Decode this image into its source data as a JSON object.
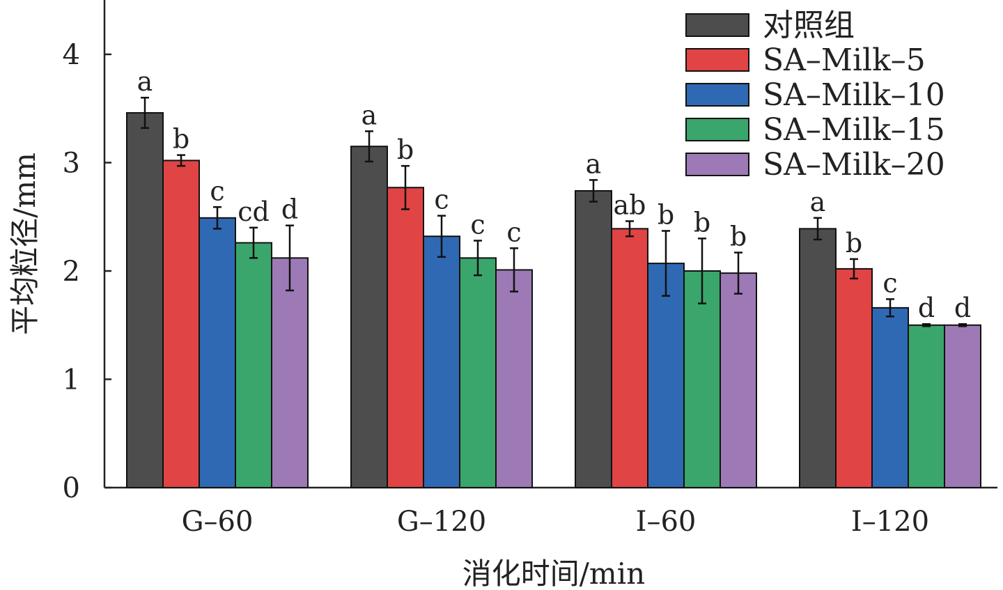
{
  "chart_data": {
    "type": "bar",
    "title": "",
    "xlabel": "消化时间/min",
    "ylabel": "平均粒径/mm",
    "ylim": [
      0,
      4.5
    ],
    "yticks": [
      0,
      1,
      2,
      3,
      4
    ],
    "categories": [
      "G-60",
      "G-120",
      "I-60",
      "I-120"
    ],
    "legend_position": "top-right",
    "grid": false,
    "series": [
      {
        "name": "对照组",
        "color": "#4d4d4d",
        "values": [
          3.46,
          3.15,
          2.74,
          2.39
        ],
        "errors": [
          0.14,
          0.14,
          0.1,
          0.1
        ],
        "labels": [
          "a",
          "a",
          "a",
          "a"
        ]
      },
      {
        "name": "SA-Milk-5",
        "color": "#e04444",
        "values": [
          3.02,
          2.77,
          2.39,
          2.02
        ],
        "errors": [
          0.05,
          0.2,
          0.07,
          0.09
        ],
        "labels": [
          "b",
          "b",
          "ab",
          "b"
        ]
      },
      {
        "name": "SA-Milk-10",
        "color": "#2f69b3",
        "values": [
          2.49,
          2.32,
          2.07,
          1.66
        ],
        "errors": [
          0.1,
          0.19,
          0.3,
          0.08
        ],
        "labels": [
          "c",
          "c",
          "b",
          "c"
        ]
      },
      {
        "name": "SA-Milk-15",
        "color": "#3aa66b",
        "values": [
          2.26,
          2.12,
          2.0,
          1.5
        ],
        "errors": [
          0.14,
          0.16,
          0.3,
          0.01
        ],
        "labels": [
          "cd",
          "c",
          "b",
          "d"
        ]
      },
      {
        "name": "SA-Milk-20",
        "color": "#9d7ab5",
        "values": [
          2.12,
          2.01,
          1.98,
          1.5
        ],
        "errors": [
          0.3,
          0.2,
          0.19,
          0.01
        ],
        "labels": [
          "d",
          "c",
          "b",
          "d"
        ]
      }
    ]
  }
}
